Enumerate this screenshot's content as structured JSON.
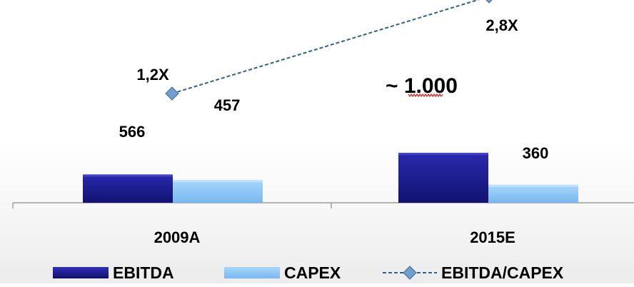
{
  "chart_data": {
    "type": "bar",
    "categories": [
      "2009A",
      "2015E"
    ],
    "series": [
      {
        "name": "EBITDA",
        "values": [
          566,
          1000
        ],
        "value_labels": [
          "566",
          "~ 1.000"
        ],
        "color": "#1f1f99"
      },
      {
        "name": "CAPEX",
        "values": [
          457,
          360
        ],
        "value_labels": [
          "457",
          "360"
        ],
        "color": "#8fc7f7"
      }
    ],
    "line_series": {
      "name": "EBITDA/CAPEX",
      "values": [
        1.2,
        2.8
      ],
      "value_labels": [
        "1,2X",
        "2,8X"
      ],
      "color": "#2f5f93",
      "style": "dashed",
      "marker": "diamond"
    },
    "legend": {
      "placement": "bottom",
      "items": [
        "EBITDA",
        "CAPEX",
        "EBITDA/CAPEX"
      ]
    },
    "title": "",
    "xlabel": "",
    "ylabel": "",
    "grid": false
  }
}
